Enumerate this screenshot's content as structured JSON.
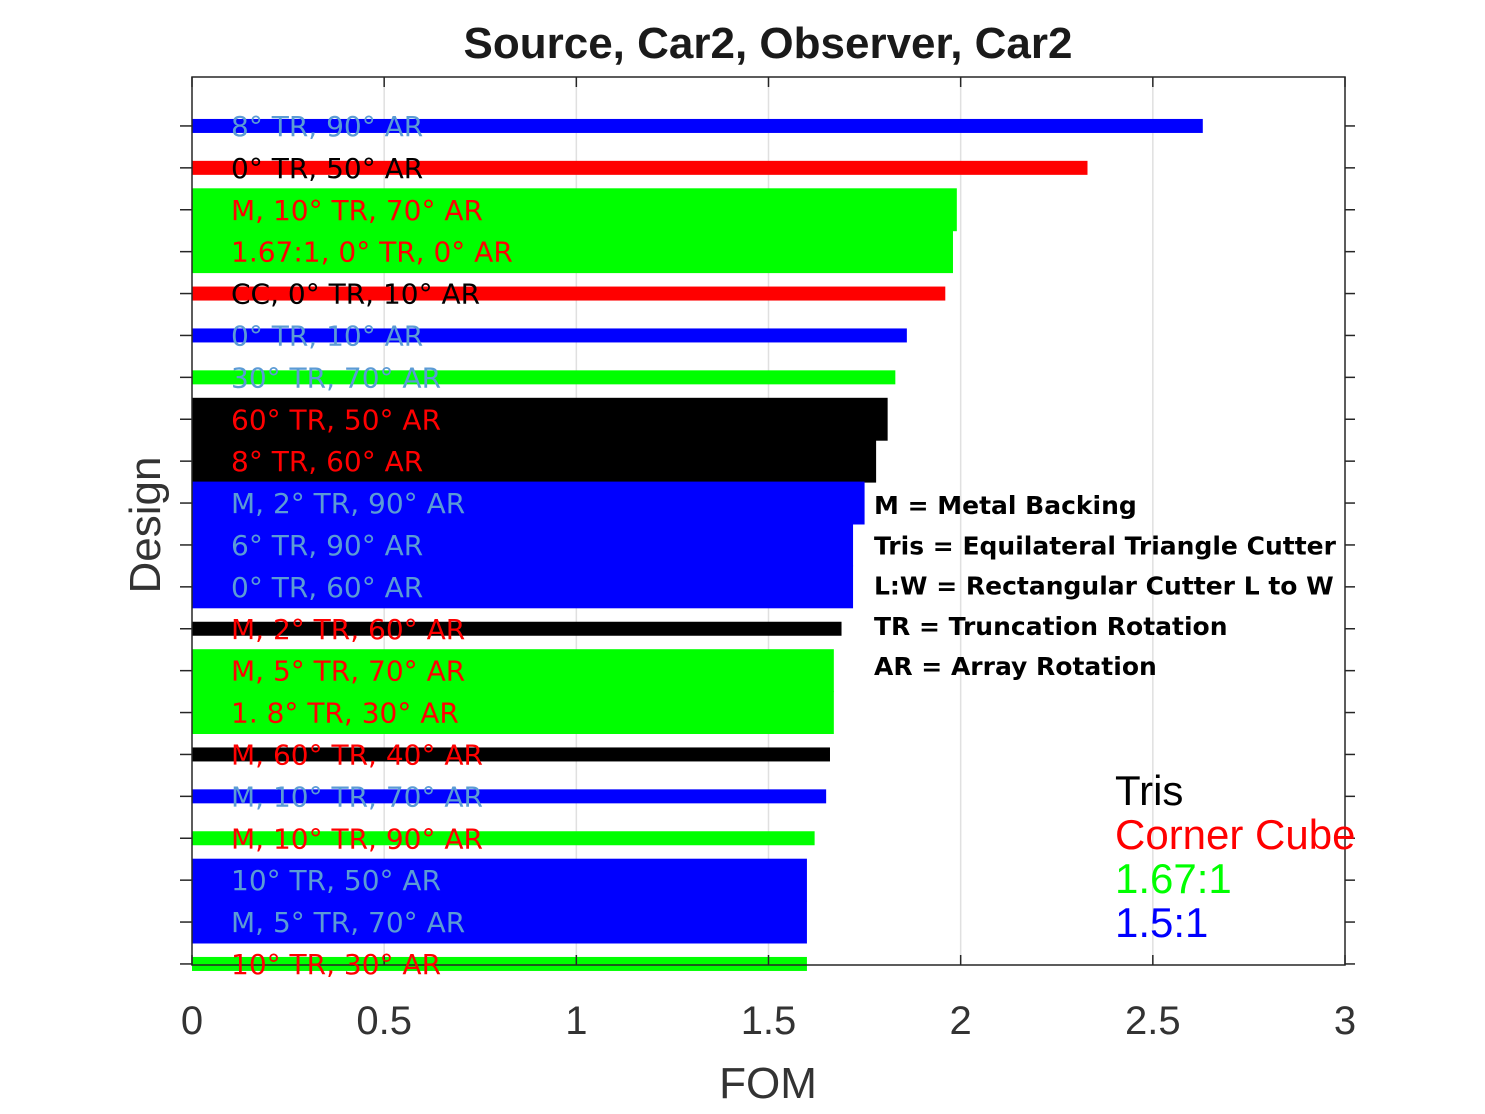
{
  "chart_data": {
    "type": "bar",
    "orientation": "horizontal",
    "title": "Source, Car2, Observer, Car2",
    "xlabel": "FOM",
    "ylabel": "Design",
    "xlim": [
      0,
      3
    ],
    "xticks": [
      "0",
      "0.5",
      "1",
      "1.5",
      "2",
      "2.5",
      "3"
    ],
    "grid": "vertical",
    "legend_placement": "bottom-right",
    "groups": [
      {
        "name": "Tris",
        "color": "#000000"
      },
      {
        "name": "Corner Cube",
        "color": "#ff0000"
      },
      {
        "name": "1.67:1",
        "color": "#00ff00"
      },
      {
        "name": "1.5:1",
        "color": "#0000ff"
      }
    ],
    "notes": [
      "M = Metal Backing",
      "Tris = Equilateral Triangle Cutter",
      "L:W = Rectangular Cutter L to W",
      "TR = Truncation Rotation",
      "AR = Array Rotation"
    ],
    "bars": [
      {
        "label": "8° TR, 90° AR",
        "value": 2.63,
        "group": "1.5:1",
        "label_color": "#5b9bd5"
      },
      {
        "label": "0° TR, 50° AR",
        "value": 2.33,
        "group": "Corner Cube",
        "label_color": "#000000"
      },
      {
        "label": "M, 10° TR, 70° AR",
        "value": 1.99,
        "group": "1.67:1",
        "label_color": "#ff0000"
      },
      {
        "label": "1.67:1, 0° TR, 0° AR",
        "value": 1.98,
        "group": "1.67:1",
        "label_color": "#ff0000"
      },
      {
        "label": "CC, 0° TR, 10° AR",
        "value": 1.96,
        "group": "Corner Cube",
        "label_color": "#000000"
      },
      {
        "label": "0° TR, 10° AR",
        "value": 1.86,
        "group": "1.5:1",
        "label_color": "#5b9bd5"
      },
      {
        "label": "30° TR, 70° AR",
        "value": 1.83,
        "group": "1.67:1",
        "label_color": "#5b9bd5"
      },
      {
        "label": "60° TR, 50° AR",
        "value": 1.81,
        "group": "Tris",
        "label_color": "#ff0000"
      },
      {
        "label": "8° TR, 60° AR",
        "value": 1.78,
        "group": "Tris",
        "label_color": "#ff0000"
      },
      {
        "label": "M, 2° TR, 90° AR",
        "value": 1.75,
        "group": "1.5:1",
        "label_color": "#5b9bd5"
      },
      {
        "label": "6° TR, 90° AR",
        "value": 1.72,
        "group": "1.5:1",
        "label_color": "#5b9bd5"
      },
      {
        "label": "0° TR, 60° AR",
        "value": 1.72,
        "group": "1.5:1",
        "label_color": "#5b9bd5"
      },
      {
        "label": "M, 2° TR, 60° AR",
        "value": 1.69,
        "group": "Tris",
        "label_color": "#ff0000"
      },
      {
        "label": "M, 5° TR, 70° AR",
        "value": 1.67,
        "group": "1.67:1",
        "label_color": "#ff0000"
      },
      {
        "label": "1. 8° TR, 30° AR",
        "value": 1.67,
        "group": "1.67:1",
        "label_color": "#ff0000"
      },
      {
        "label": "M, 60° TR, 40° AR",
        "value": 1.66,
        "group": "Tris",
        "label_color": "#ff0000"
      },
      {
        "label": "M, 10° TR, 70° AR",
        "value": 1.65,
        "group": "1.5:1",
        "label_color": "#5b9bd5"
      },
      {
        "label": "M, 10° TR, 90° AR",
        "value": 1.62,
        "group": "1.67:1",
        "label_color": "#ff0000"
      },
      {
        "label": "10° TR, 50° AR",
        "value": 1.6,
        "group": "1.5:1",
        "label_color": "#5b9bd5"
      },
      {
        "label": "M, 5° TR, 70° AR",
        "value": 1.6,
        "group": "1.5:1",
        "label_color": "#5b9bd5"
      },
      {
        "label": "10° TR, 30° AR",
        "value": 1.6,
        "group": "1.67:1",
        "label_color": "#ff0000"
      }
    ]
  }
}
